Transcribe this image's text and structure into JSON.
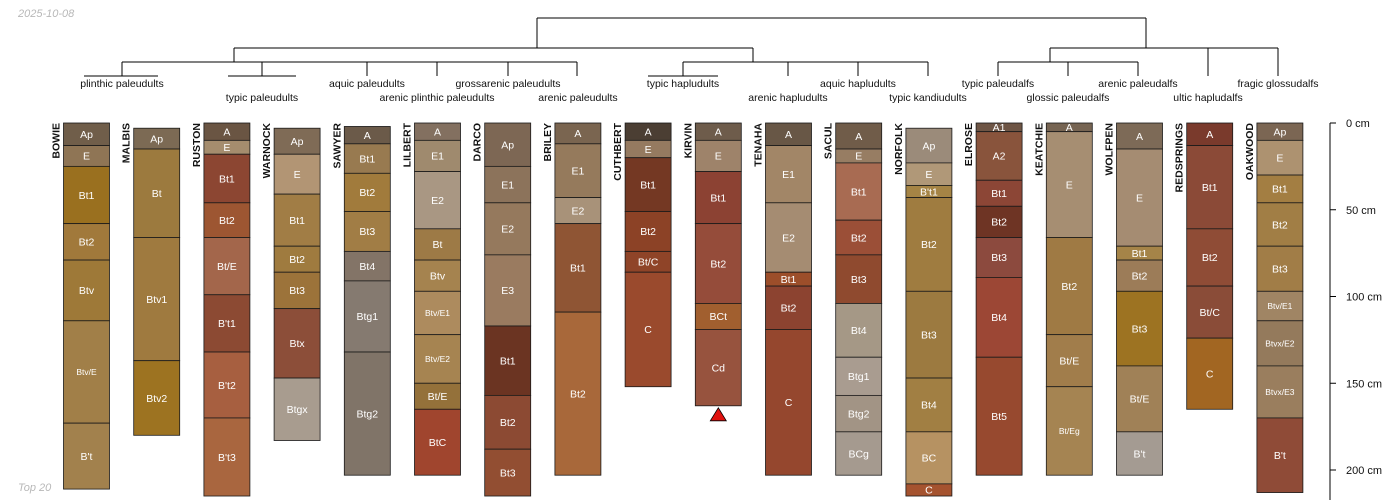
{
  "stamp": {
    "date": "2025-10-08",
    "footer": "Top 20"
  },
  "chart_data": {
    "type": "soil-profile-sketch",
    "depth_unit": "cm",
    "depth_range": [
      0,
      215
    ],
    "depth_ticks": [
      {
        "value": 0,
        "label": "0 cm"
      },
      {
        "value": 50,
        "label": "50 cm"
      },
      {
        "value": 100,
        "label": "100 cm"
      },
      {
        "value": 150,
        "label": "150 cm"
      },
      {
        "value": 200,
        "label": "200 cm"
      }
    ],
    "groups": [
      {
        "label": "plinthic paleudults",
        "members": [
          "BOWIE",
          "MALBIS"
        ]
      },
      {
        "label": "typic paleudults",
        "members": [
          "RUSTON",
          "WARNOCK"
        ]
      },
      {
        "label": "aquic paleudults",
        "members": [
          "SAWYER"
        ]
      },
      {
        "label": "arenic plinthic paleudults",
        "members": [
          "LILBERT"
        ]
      },
      {
        "label": "grossarenic paleudults",
        "members": [
          "DARCO"
        ]
      },
      {
        "label": "arenic paleudults",
        "members": [
          "BRILEY"
        ]
      },
      {
        "label": "typic hapludults",
        "members": [
          "CUTHBERT",
          "KIRVIN"
        ]
      },
      {
        "label": "arenic hapludults",
        "members": [
          "TENAHA"
        ]
      },
      {
        "label": "aquic hapludults",
        "members": [
          "SACUL"
        ]
      },
      {
        "label": "typic kandiudults",
        "members": [
          "NORFOLK"
        ]
      },
      {
        "label": "typic paleudalfs",
        "members": [
          "ELROSE"
        ]
      },
      {
        "label": "glossic paleudalfs",
        "members": [
          "KEATCHIE"
        ]
      },
      {
        "label": "arenic paleudalfs",
        "members": [
          "WOLFPEN"
        ]
      },
      {
        "label": "ultic hapludalfs",
        "members": [
          "REDSPRINGS"
        ]
      },
      {
        "label": "fragic glossudalfs",
        "members": [
          "OAKWOOD"
        ]
      }
    ],
    "profiles": [
      {
        "name": "BOWIE",
        "horizons": [
          {
            "name": "Ap",
            "top": 0,
            "bottom": 13,
            "color": "#705e4a"
          },
          {
            "name": "E",
            "top": 13,
            "bottom": 25,
            "color": "#8f7555"
          },
          {
            "name": "Bt1",
            "top": 25,
            "bottom": 58,
            "color": "#9a701f"
          },
          {
            "name": "Bt2",
            "top": 58,
            "bottom": 79,
            "color": "#a1793b"
          },
          {
            "name": "Btv",
            "top": 79,
            "bottom": 114,
            "color": "#9e7938"
          },
          {
            "name": "Btv/E",
            "top": 114,
            "bottom": 173,
            "color": "#a17f48"
          },
          {
            "name": "B't",
            "top": 173,
            "bottom": 211,
            "color": "#a2814d"
          }
        ]
      },
      {
        "name": "MALBIS",
        "horizons": [
          {
            "name": "Ap",
            "top": 3,
            "bottom": 15,
            "color": "#7c6a54"
          },
          {
            "name": "Bt",
            "top": 15,
            "bottom": 66,
            "color": "#9c7a3e"
          },
          {
            "name": "Btv1",
            "top": 66,
            "bottom": 137,
            "color": "#9f7a3f"
          },
          {
            "name": "Btv2",
            "top": 137,
            "bottom": 180,
            "color": "#9d7321"
          }
        ]
      },
      {
        "name": "RUSTON",
        "horizons": [
          {
            "name": "A",
            "top": 0,
            "bottom": 10,
            "color": "#6a5543"
          },
          {
            "name": "E",
            "top": 10,
            "bottom": 18,
            "color": "#a58d6e"
          },
          {
            "name": "Bt1",
            "top": 18,
            "bottom": 46,
            "color": "#8c4632"
          },
          {
            "name": "Bt2",
            "top": 46,
            "bottom": 66,
            "color": "#9d5632"
          },
          {
            "name": "Bt/E",
            "top": 66,
            "bottom": 99,
            "color": "#a3664b"
          },
          {
            "name": "B't1",
            "top": 99,
            "bottom": 132,
            "color": "#8c4a33"
          },
          {
            "name": "B't2",
            "top": 132,
            "bottom": 170,
            "color": "#a75f40"
          },
          {
            "name": "B't3",
            "top": 170,
            "bottom": 215,
            "color": "#a9663f"
          }
        ]
      },
      {
        "name": "WARNOCK",
        "horizons": [
          {
            "name": "Ap",
            "top": 3,
            "bottom": 18,
            "color": "#7f6b56"
          },
          {
            "name": "E",
            "top": 18,
            "bottom": 41,
            "color": "#b29574"
          },
          {
            "name": "Bt1",
            "top": 41,
            "bottom": 71,
            "color": "#a17d45"
          },
          {
            "name": "Bt2",
            "top": 71,
            "bottom": 86,
            "color": "#9f7b3f"
          },
          {
            "name": "Bt3",
            "top": 86,
            "bottom": 107,
            "color": "#9c733a"
          },
          {
            "name": "Btx",
            "top": 107,
            "bottom": 147,
            "color": "#8c4e39"
          },
          {
            "name": "Btgx",
            "top": 147,
            "bottom": 183,
            "color": "#a89c8f"
          }
        ]
      },
      {
        "name": "SAWYER",
        "horizons": [
          {
            "name": "A",
            "top": 2,
            "bottom": 12,
            "color": "#6b5a49"
          },
          {
            "name": "Bt1",
            "top": 12,
            "bottom": 29,
            "color": "#987a50"
          },
          {
            "name": "Bt2",
            "top": 29,
            "bottom": 51,
            "color": "#a17b3c"
          },
          {
            "name": "Bt3",
            "top": 51,
            "bottom": 74,
            "color": "#a17d45"
          },
          {
            "name": "Bt4",
            "top": 74,
            "bottom": 91,
            "color": "#837467"
          },
          {
            "name": "Btg1",
            "top": 91,
            "bottom": 132,
            "color": "#857a70"
          },
          {
            "name": "Btg2",
            "top": 132,
            "bottom": 203,
            "color": "#807468"
          }
        ]
      },
      {
        "name": "LILBERT",
        "horizons": [
          {
            "name": "A",
            "top": 0,
            "bottom": 10,
            "color": "#837060"
          },
          {
            "name": "E1",
            "top": 10,
            "bottom": 28,
            "color": "#9f8a6e"
          },
          {
            "name": "E2",
            "top": 28,
            "bottom": 61,
            "color": "#a99783"
          },
          {
            "name": "Bt",
            "top": 61,
            "bottom": 79,
            "color": "#9d7a46"
          },
          {
            "name": "Btv",
            "top": 79,
            "bottom": 97,
            "color": "#a5834f"
          },
          {
            "name": "Btv/E1",
            "top": 97,
            "bottom": 122,
            "color": "#ad8b5e"
          },
          {
            "name": "Btv/E2",
            "top": 122,
            "bottom": 150,
            "color": "#a68451"
          },
          {
            "name": "Bt/E",
            "top": 150,
            "bottom": 165,
            "color": "#94713a"
          },
          {
            "name": "BtC",
            "top": 165,
            "bottom": 203,
            "color": "#a0452e"
          }
        ]
      },
      {
        "name": "DARCO",
        "horizons": [
          {
            "name": "Ap",
            "top": 0,
            "bottom": 25,
            "color": "#7d6754"
          },
          {
            "name": "E1",
            "top": 25,
            "bottom": 46,
            "color": "#8c735b"
          },
          {
            "name": "E2",
            "top": 46,
            "bottom": 76,
            "color": "#95795d"
          },
          {
            "name": "E3",
            "top": 76,
            "bottom": 117,
            "color": "#9a7b60"
          },
          {
            "name": "Bt1",
            "top": 117,
            "bottom": 157,
            "color": "#6b3422"
          },
          {
            "name": "Bt2",
            "top": 157,
            "bottom": 188,
            "color": "#8c4a33"
          },
          {
            "name": "Bt3",
            "top": 188,
            "bottom": 215,
            "color": "#924e32"
          }
        ]
      },
      {
        "name": "BRILEY",
        "horizons": [
          {
            "name": "A",
            "top": 0,
            "bottom": 12,
            "color": "#7a6550"
          },
          {
            "name": "E1",
            "top": 12,
            "bottom": 43,
            "color": "#957a5c"
          },
          {
            "name": "E2",
            "top": 43,
            "bottom": 58,
            "color": "#a89279"
          },
          {
            "name": "Bt1",
            "top": 58,
            "bottom": 109,
            "color": "#8f5534"
          },
          {
            "name": "Bt2",
            "top": 109,
            "bottom": 203,
            "color": "#a8683a"
          }
        ]
      },
      {
        "name": "CUTHBERT",
        "horizons": [
          {
            "name": "A",
            "top": 0,
            "bottom": 10,
            "color": "#4b3e33"
          },
          {
            "name": "E",
            "top": 10,
            "bottom": 20,
            "color": "#957a60"
          },
          {
            "name": "Bt1",
            "top": 20,
            "bottom": 51,
            "color": "#743823"
          },
          {
            "name": "Bt2",
            "top": 51,
            "bottom": 74,
            "color": "#8c4226"
          },
          {
            "name": "Bt/C",
            "top": 74,
            "bottom": 86,
            "color": "#8f4428"
          },
          {
            "name": "C",
            "top": 86,
            "bottom": 152,
            "color": "#9a4a2d"
          }
        ]
      },
      {
        "name": "KIRVIN",
        "horizons": [
          {
            "name": "A",
            "top": 0,
            "bottom": 10,
            "color": "#6e5c4b"
          },
          {
            "name": "E",
            "top": 10,
            "bottom": 28,
            "color": "#9e836a"
          },
          {
            "name": "Bt1",
            "top": 28,
            "bottom": 58,
            "color": "#8c4233"
          },
          {
            "name": "Bt2",
            "top": 58,
            "bottom": 104,
            "color": "#954c3a"
          },
          {
            "name": "BCt",
            "top": 104,
            "bottom": 119,
            "color": "#a15f2f"
          },
          {
            "name": "Cd",
            "top": 119,
            "bottom": 163,
            "color": "#97533e"
          }
        ]
      },
      {
        "name": "TENAHA",
        "horizons": [
          {
            "name": "A",
            "top": 0,
            "bottom": 13,
            "color": "#685746"
          },
          {
            "name": "E1",
            "top": 13,
            "bottom": 46,
            "color": "#a28667"
          },
          {
            "name": "E2",
            "top": 46,
            "bottom": 86,
            "color": "#a58c72"
          },
          {
            "name": "Bt1",
            "top": 86,
            "bottom": 94,
            "color": "#9c4e2a"
          },
          {
            "name": "Bt2",
            "top": 94,
            "bottom": 119,
            "color": "#8c4330"
          },
          {
            "name": "C",
            "top": 119,
            "bottom": 203,
            "color": "#95472e"
          }
        ]
      },
      {
        "name": "SACUL",
        "horizons": [
          {
            "name": "A",
            "top": 0,
            "bottom": 15,
            "color": "#705c49"
          },
          {
            "name": "E",
            "top": 15,
            "bottom": 23,
            "color": "#977d63"
          },
          {
            "name": "Bt1",
            "top": 23,
            "bottom": 56,
            "color": "#a86b52"
          },
          {
            "name": "Bt2",
            "top": 56,
            "bottom": 76,
            "color": "#9b4f37"
          },
          {
            "name": "Bt3",
            "top": 76,
            "bottom": 104,
            "color": "#8f4a2f"
          },
          {
            "name": "Bt4",
            "top": 104,
            "bottom": 135,
            "color": "#a59886"
          },
          {
            "name": "Btg1",
            "top": 135,
            "bottom": 157,
            "color": "#a99c90"
          },
          {
            "name": "Btg2",
            "top": 157,
            "bottom": 178,
            "color": "#a29485"
          },
          {
            "name": "BCg",
            "top": 178,
            "bottom": 203,
            "color": "#a59a8f"
          }
        ]
      },
      {
        "name": "NORFOLK",
        "horizons": [
          {
            "name": "Ap",
            "top": 3,
            "bottom": 23,
            "color": "#9b8b7a"
          },
          {
            "name": "E",
            "top": 23,
            "bottom": 36,
            "color": "#b09878"
          },
          {
            "name": "B't1",
            "top": 36,
            "bottom": 43,
            "color": "#a58445"
          },
          {
            "name": "Bt2",
            "top": 43,
            "bottom": 97,
            "color": "#9f7c40"
          },
          {
            "name": "Bt3",
            "top": 97,
            "bottom": 147,
            "color": "#9c7a40"
          },
          {
            "name": "Bt4",
            "top": 147,
            "bottom": 178,
            "color": "#a17f43"
          },
          {
            "name": "BC",
            "top": 178,
            "bottom": 208,
            "color": "#b69262"
          },
          {
            "name": "C",
            "top": 208,
            "bottom": 215,
            "color": "#a5532f"
          }
        ]
      },
      {
        "name": "ELROSE",
        "horizons": [
          {
            "name": "A1",
            "top": 0,
            "bottom": 5,
            "color": "#6e5545"
          },
          {
            "name": "A2",
            "top": 5,
            "bottom": 33,
            "color": "#89543c"
          },
          {
            "name": "Bt1",
            "top": 33,
            "bottom": 48,
            "color": "#8c4636"
          },
          {
            "name": "Bt2",
            "top": 48,
            "bottom": 66,
            "color": "#6e3424"
          },
          {
            "name": "Bt3",
            "top": 66,
            "bottom": 89,
            "color": "#8c4a3e"
          },
          {
            "name": "Bt4",
            "top": 89,
            "bottom": 135,
            "color": "#9c4735"
          },
          {
            "name": "Bt5",
            "top": 135,
            "bottom": 203,
            "color": "#97492f"
          }
        ]
      },
      {
        "name": "KEATCHIE",
        "horizons": [
          {
            "name": "A",
            "top": 0,
            "bottom": 5,
            "color": "#766452"
          },
          {
            "name": "E",
            "top": 5,
            "bottom": 66,
            "color": "#a68e72"
          },
          {
            "name": "Bt2",
            "top": 66,
            "bottom": 122,
            "color": "#9f7a44"
          },
          {
            "name": "Bt/E",
            "top": 122,
            "bottom": 152,
            "color": "#a17d4b"
          },
          {
            "name": "Bt/Eg",
            "top": 152,
            "bottom": 203,
            "color": "#a58452"
          }
        ]
      },
      {
        "name": "WOLFPEN",
        "horizons": [
          {
            "name": "A",
            "top": 0,
            "bottom": 15,
            "color": "#7d6a57"
          },
          {
            "name": "E",
            "top": 15,
            "bottom": 71,
            "color": "#a58c72"
          },
          {
            "name": "Bt1",
            "top": 71,
            "bottom": 79,
            "color": "#a58448"
          },
          {
            "name": "Bt2",
            "top": 79,
            "bottom": 97,
            "color": "#9c7c58"
          },
          {
            "name": "Bt3",
            "top": 97,
            "bottom": 140,
            "color": "#9d7322"
          },
          {
            "name": "Bt/E",
            "top": 140,
            "bottom": 178,
            "color": "#a08157"
          },
          {
            "name": "B't",
            "top": 178,
            "bottom": 203,
            "color": "#a49b92"
          }
        ]
      },
      {
        "name": "REDSPRINGS",
        "horizons": [
          {
            "name": "A",
            "top": 0,
            "bottom": 13,
            "color": "#7a3a2c"
          },
          {
            "name": "Bt1",
            "top": 13,
            "bottom": 61,
            "color": "#8b4a37"
          },
          {
            "name": "Bt2",
            "top": 61,
            "bottom": 94,
            "color": "#8f4c36"
          },
          {
            "name": "Bt/C",
            "top": 94,
            "bottom": 124,
            "color": "#8a4c38"
          },
          {
            "name": "C",
            "top": 124,
            "bottom": 165,
            "color": "#a26622"
          }
        ]
      },
      {
        "name": "OAKWOOD",
        "horizons": [
          {
            "name": "Ap",
            "top": 0,
            "bottom": 10,
            "color": "#7b6653"
          },
          {
            "name": "E",
            "top": 10,
            "bottom": 30,
            "color": "#ad9270"
          },
          {
            "name": "Bt1",
            "top": 30,
            "bottom": 46,
            "color": "#a37e42"
          },
          {
            "name": "Bt2",
            "top": 46,
            "bottom": 71,
            "color": "#a17e45"
          },
          {
            "name": "Bt3",
            "top": 71,
            "bottom": 97,
            "color": "#a17d47"
          },
          {
            "name": "Btv/E1",
            "top": 97,
            "bottom": 114,
            "color": "#a08564"
          },
          {
            "name": "Btvx/E2",
            "top": 114,
            "bottom": 140,
            "color": "#947a5c"
          },
          {
            "name": "Btvx/E3",
            "top": 140,
            "bottom": 170,
            "color": "#9a7e5e"
          },
          {
            "name": "B't",
            "top": 170,
            "bottom": 213,
            "color": "#8f4b37"
          }
        ]
      }
    ],
    "annotations": [
      {
        "type": "marker",
        "shape": "triangle",
        "profile": "KIRVIN",
        "depth": 163,
        "color": "#e0120f"
      }
    ]
  }
}
